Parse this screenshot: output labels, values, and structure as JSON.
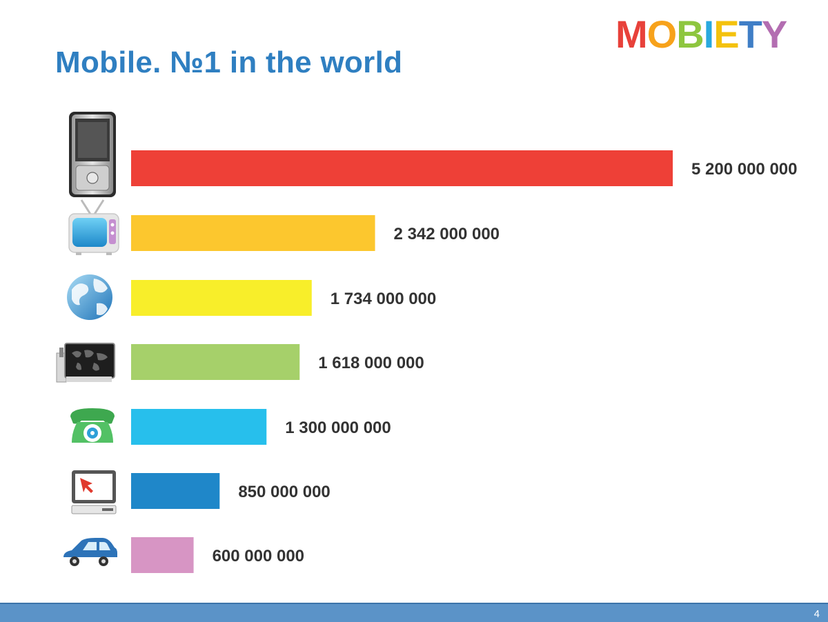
{
  "header": {
    "title": "Mobile. №1 in the world",
    "logo_text": "MOBIETY",
    "logo_letters": [
      {
        "char": "M",
        "color": "#e8413a"
      },
      {
        "char": "O",
        "color": "#f7a21b"
      },
      {
        "char": "B",
        "color": "#8ec63f"
      },
      {
        "char": "I",
        "color": "#29a9df"
      },
      {
        "char": "E",
        "color": "#f4c20d"
      },
      {
        "char": "T",
        "color": "#3f7ec6"
      },
      {
        "char": "Y",
        "color": "#b36db1"
      }
    ]
  },
  "chart_data": {
    "type": "bar",
    "orientation": "horizontal",
    "title": "Mobile. №1 in the world",
    "xlabel": "",
    "ylabel": "",
    "grid": false,
    "legend": "none",
    "xlim": [
      0,
      5200000000
    ],
    "categories": [
      "mobile-phone-icon",
      "tv-icon",
      "globe-icon",
      "card-reader-icon",
      "telephone-icon",
      "computer-icon",
      "car-icon"
    ],
    "values": [
      5200000000,
      2342000000,
      1734000000,
      1618000000,
      1300000000,
      850000000,
      600000000
    ],
    "labels": [
      "5 200 000 000",
      "2 342 000 000",
      "1 734 000 000",
      "1 618 000 000",
      "1 300 000 000",
      "850 000 000",
      "600 000 000"
    ],
    "colors": [
      "#ee4037",
      "#fcc72e",
      "#f8ee2a",
      "#a6d06a",
      "#27bfec",
      "#1f87c9",
      "#d795c4"
    ]
  },
  "footer": {
    "page_number": "4"
  }
}
